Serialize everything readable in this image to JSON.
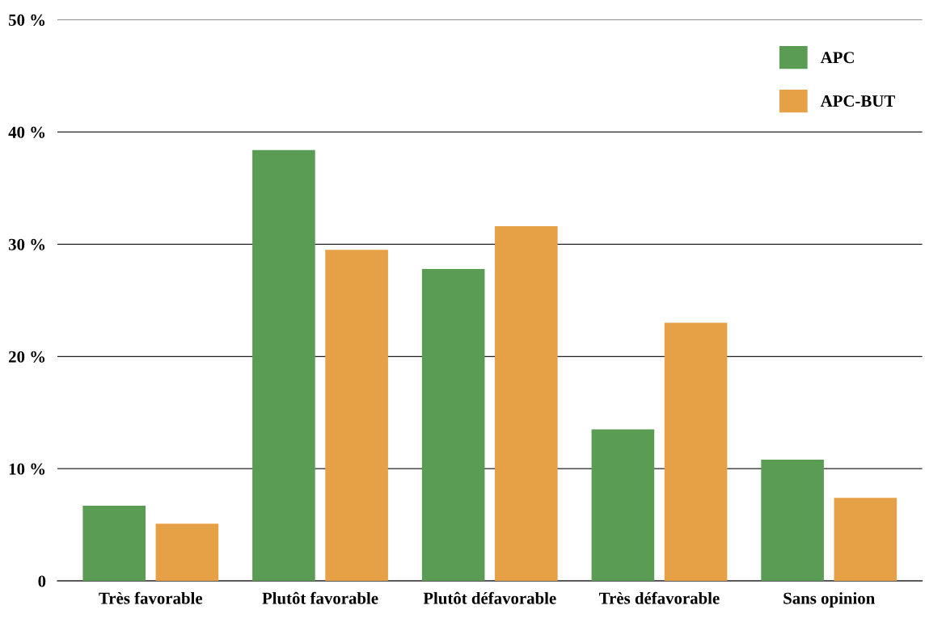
{
  "chart_data": {
    "type": "bar",
    "categories": [
      "Très favorable",
      "Plutôt favorable",
      "Plutôt défavorable",
      "Très défavorable",
      "Sans opinion"
    ],
    "series": [
      {
        "name": "APC",
        "color": "#5a9c53",
        "values": [
          6.7,
          38.4,
          27.8,
          13.5,
          10.8
        ]
      },
      {
        "name": "APC-BUT",
        "color": "#e6a046",
        "values": [
          5.1,
          29.5,
          31.6,
          23.0,
          7.4
        ]
      }
    ],
    "ylim": [
      0,
      50
    ],
    "yticks": [
      0,
      {
        "value": 10,
        "label": "10 %"
      },
      {
        "value": 20,
        "label": "20 %"
      },
      {
        "value": 30,
        "label": "30 %"
      },
      {
        "value": 40,
        "label": "40 %"
      },
      {
        "value": 50,
        "label": "50 %"
      }
    ],
    "grid": "y",
    "legend": "top right"
  }
}
